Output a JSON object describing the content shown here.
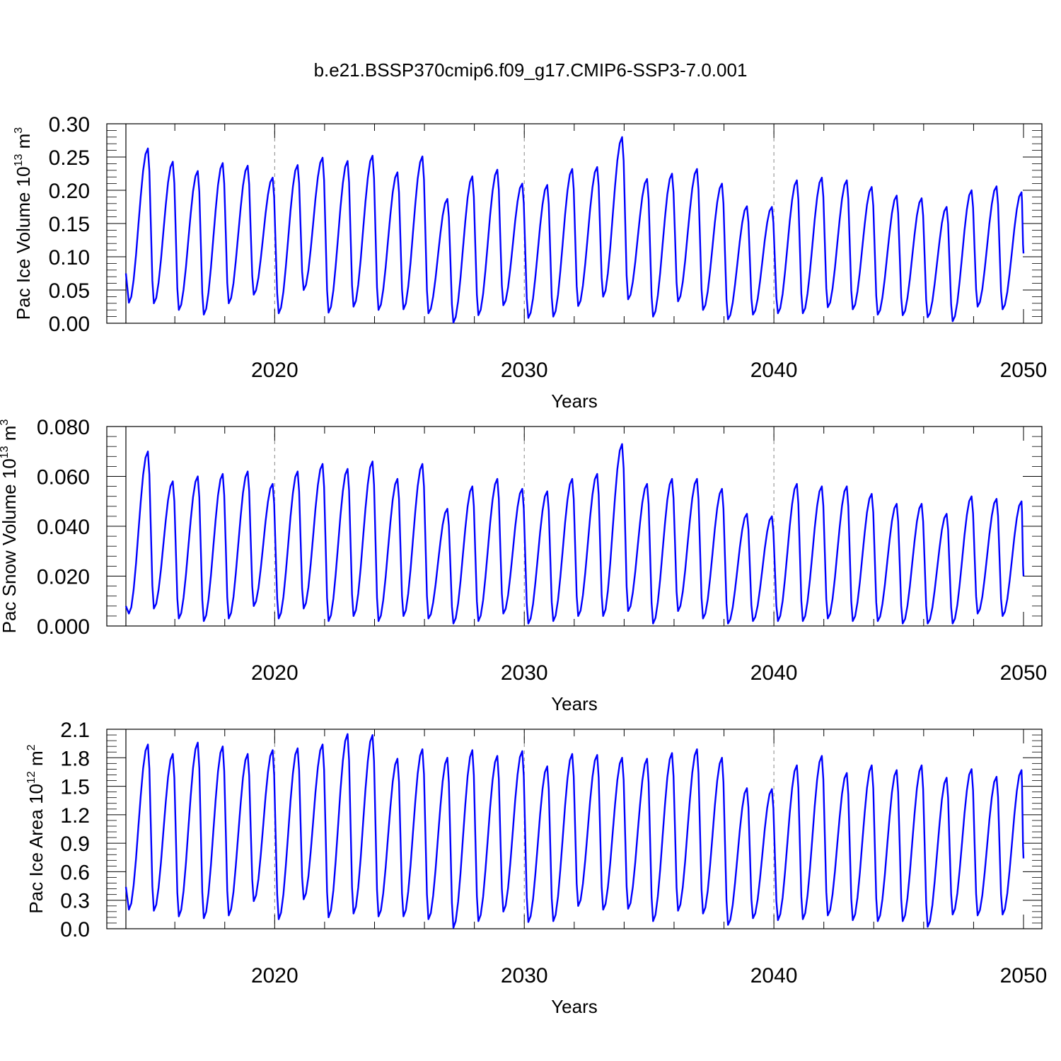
{
  "title": "b.e21.BSSP370cmip6.f09_g17.CMIP6-SSP3-7.0.001",
  "colors": {
    "line": "#0000ff",
    "axis": "#000000",
    "refline": "#888888"
  },
  "chart_data": [
    {
      "type": "line",
      "ylabel": {
        "main": "Pac Ice Volume 10",
        "exp": "13",
        "unit": " m",
        "unit_exp": "3"
      },
      "xlabel": "Years",
      "xlim": [
        2014.04,
        2050.0
      ],
      "ylim": [
        0.0,
        0.3
      ],
      "yticks": [
        "0.00",
        "0.05",
        "0.10",
        "0.15",
        "0.20",
        "0.25",
        "0.30"
      ],
      "ytick_values": [
        0,
        0.05,
        0.1,
        0.15,
        0.2,
        0.25,
        0.3
      ],
      "xticks": [
        "2020",
        "2030",
        "2040",
        "2050"
      ],
      "xtick_values": [
        2020,
        2030,
        2040,
        2050
      ],
      "reference_lines_x": [
        2020,
        2030,
        2040
      ],
      "series": [
        {
          "start_year": 2014.04,
          "maxima": [
            0.263,
            0.243,
            0.229,
            0.241,
            0.237,
            0.219,
            0.238,
            0.249,
            0.244,
            0.252,
            0.227,
            0.251,
            0.187,
            0.221,
            0.231,
            0.21,
            0.208,
            0.232,
            0.235,
            0.28,
            0.217,
            0.225,
            0.232,
            0.21,
            0.176,
            0.175,
            0.215,
            0.219,
            0.215,
            0.205,
            0.192,
            0.188,
            0.175,
            0.2,
            0.206,
            0.197
          ],
          "minima": [
            0.031,
            0.03,
            0.02,
            0.013,
            0.03,
            0.043,
            0.015,
            0.05,
            0.016,
            0.025,
            0.02,
            0.021,
            0.015,
            0.001,
            0.012,
            0.027,
            0.008,
            0.01,
            0.026,
            0.04,
            0.036,
            0.01,
            0.033,
            0.02,
            0.006,
            0.013,
            0.015,
            0.015,
            0.024,
            0.021,
            0.013,
            0.012,
            0.009,
            0.003,
            0.025,
            0.021
          ],
          "first_value": 0.075,
          "last_value": 0.105
        }
      ]
    },
    {
      "type": "line",
      "ylabel": {
        "main": "Pac Snow Volume 10",
        "exp": "13",
        "unit": " m",
        "unit_exp": "3"
      },
      "xlabel": "Years",
      "xlim": [
        2014.04,
        2050.0
      ],
      "ylim": [
        0.0,
        0.08
      ],
      "yticks": [
        "0.000",
        "0.020",
        "0.040",
        "0.060",
        "0.080"
      ],
      "ytick_values": [
        0,
        0.02,
        0.04,
        0.06,
        0.08
      ],
      "xticks": [
        "2020",
        "2030",
        "2040",
        "2050"
      ],
      "xtick_values": [
        2020,
        2030,
        2040,
        2050
      ],
      "reference_lines_x": [
        2020,
        2030,
        2040
      ],
      "series": [
        {
          "start_year": 2014.04,
          "maxima": [
            0.07,
            0.058,
            0.06,
            0.061,
            0.062,
            0.057,
            0.062,
            0.065,
            0.063,
            0.066,
            0.059,
            0.065,
            0.047,
            0.056,
            0.059,
            0.055,
            0.054,
            0.059,
            0.061,
            0.073,
            0.057,
            0.059,
            0.059,
            0.055,
            0.045,
            0.044,
            0.057,
            0.056,
            0.056,
            0.053,
            0.049,
            0.049,
            0.045,
            0.052,
            0.051,
            0.05
          ],
          "minima": [
            0.005,
            0.007,
            0.003,
            0.002,
            0.003,
            0.008,
            0.003,
            0.007,
            0.002,
            0.004,
            0.002,
            0.004,
            0.003,
            0.001,
            0.002,
            0.005,
            0.001,
            0.002,
            0.004,
            0.004,
            0.006,
            0.001,
            0.006,
            0.003,
            0.001,
            0.002,
            0.002,
            0.002,
            0.003,
            0.002,
            0.002,
            0.001,
            0.001,
            0.001,
            0.005,
            0.004
          ],
          "first_value": 0.008,
          "last_value": 0.02
        }
      ]
    },
    {
      "type": "line",
      "ylabel": {
        "main": "Pac Ice Area 10",
        "exp": "12",
        "unit": " m",
        "unit_exp": "2"
      },
      "xlabel": "Years",
      "xlim": [
        2014.04,
        2050.0
      ],
      "ylim": [
        0.0,
        2.1
      ],
      "yticks": [
        "0.0",
        "0.3",
        "0.6",
        "0.9",
        "1.2",
        "1.5",
        "1.8",
        "2.1"
      ],
      "ytick_values": [
        0,
        0.3,
        0.6,
        0.9,
        1.2,
        1.5,
        1.8,
        2.1
      ],
      "xticks": [
        "2020",
        "2030",
        "2040",
        "2050"
      ],
      "xtick_values": [
        2020,
        2030,
        2040,
        2050
      ],
      "reference_lines_x": [
        2020,
        2030,
        2040
      ],
      "series": [
        {
          "start_year": 2014.04,
          "maxima": [
            1.94,
            1.84,
            1.96,
            1.92,
            1.84,
            1.88,
            1.9,
            1.94,
            2.05,
            2.04,
            1.79,
            1.89,
            1.8,
            1.88,
            1.82,
            1.87,
            1.71,
            1.84,
            1.83,
            1.8,
            1.79,
            1.85,
            1.89,
            1.8,
            1.48,
            1.47,
            1.72,
            1.82,
            1.64,
            1.72,
            1.67,
            1.72,
            1.59,
            1.68,
            1.6,
            1.67
          ],
          "minima": [
            0.2,
            0.19,
            0.13,
            0.11,
            0.14,
            0.29,
            0.1,
            0.31,
            0.12,
            0.16,
            0.13,
            0.13,
            0.1,
            0.01,
            0.08,
            0.18,
            0.07,
            0.08,
            0.24,
            0.2,
            0.21,
            0.08,
            0.19,
            0.16,
            0.04,
            0.11,
            0.09,
            0.1,
            0.14,
            0.09,
            0.08,
            0.08,
            0.02,
            0.15,
            0.14,
            0.15
          ],
          "first_value": 0.44,
          "last_value": 0.74
        }
      ]
    }
  ]
}
